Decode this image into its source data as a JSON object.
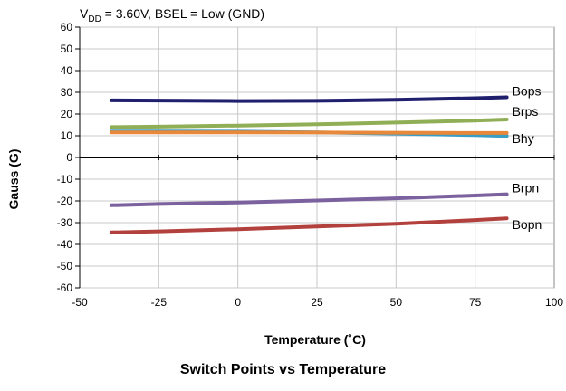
{
  "condition": {
    "prefix": "V",
    "subscript": "DD",
    "rest": " = 3.60V, BSEL = Low (GND)"
  },
  "caption": "Switch Points vs Temperature",
  "chart_data": {
    "type": "line",
    "title": "Switch Points vs Temperature",
    "xlabel": "Temperature (˚C)",
    "ylabel": "Gauss (G)",
    "xlim": [
      -50,
      100
    ],
    "ylim": [
      -60,
      60
    ],
    "xticks": [
      -50,
      -25,
      0,
      25,
      50,
      75,
      100
    ],
    "yticks": [
      60,
      50,
      40,
      30,
      20,
      10,
      0,
      -10,
      -20,
      -30,
      -40,
      -50,
      -60
    ],
    "grid": true,
    "legend": "inline labels at right end of each line",
    "series": [
      {
        "name": "Bops",
        "color": "#1f1f6e",
        "x": [
          -40,
          -25,
          0,
          25,
          50,
          75,
          85
        ],
        "y": [
          26.3,
          26.2,
          26.0,
          26.1,
          26.6,
          27.3,
          27.7
        ]
      },
      {
        "name": "Brps",
        "color": "#8fae55",
        "x": [
          -40,
          -25,
          0,
          25,
          50,
          75,
          85
        ],
        "y": [
          14.0,
          14.2,
          14.7,
          15.3,
          16.1,
          17.0,
          17.5
        ]
      },
      {
        "name": "Bhy",
        "color": "#3a9dc4",
        "x": [
          -40,
          -25,
          0,
          25,
          50,
          75,
          85
        ],
        "y": [
          12.0,
          12.0,
          11.9,
          11.6,
          11.0,
          10.3,
          9.9
        ]
      },
      {
        "name": "",
        "color": "#e8883a",
        "x": [
          -40,
          -25,
          0,
          25,
          50,
          75,
          85
        ],
        "y": [
          11.6,
          11.6,
          11.6,
          11.5,
          11.4,
          11.3,
          11.3
        ]
      },
      {
        "name": "Brpn",
        "color": "#7b619e",
        "x": [
          -40,
          -25,
          0,
          25,
          50,
          75,
          85
        ],
        "y": [
          -22.0,
          -21.4,
          -20.7,
          -19.8,
          -18.8,
          -17.5,
          -16.9
        ]
      },
      {
        "name": "Bopn",
        "color": "#b2403c",
        "x": [
          -40,
          -25,
          0,
          25,
          50,
          75,
          85
        ],
        "y": [
          -34.5,
          -34.0,
          -33.0,
          -31.8,
          -30.5,
          -28.8,
          -28.0
        ]
      }
    ]
  }
}
